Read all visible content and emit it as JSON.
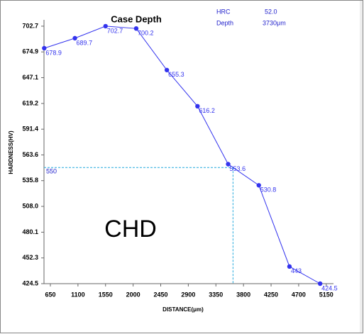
{
  "chart_data": {
    "type": "line",
    "title": "Case Depth",
    "x_label": "DISTANCE(μm)",
    "y_label": "HARDNESS(HV)",
    "info": {
      "hrc_label": "HRC",
      "hrc_value": "52.0",
      "depth_label": "Depth",
      "depth_value": "3730μm"
    },
    "annotation": "CHD",
    "threshold": 550,
    "x": [
      550,
      1050,
      1550,
      2050,
      2550,
      3050,
      3550,
      4050,
      4550,
      5050
    ],
    "series": [
      {
        "color": "#3333ee",
        "values": [
          678.9,
          689.7,
          702.7,
          700.2,
          655.3,
          616.2,
          553.6,
          530.8,
          443,
          424.5
        ]
      }
    ],
    "xlim": [
      546,
      5268
    ],
    "ylim": [
      424.5,
      708
    ],
    "xticks": [
      650,
      1100,
      1550,
      2000,
      2450,
      2900,
      3350,
      3800,
      4250,
      4700,
      5150
    ],
    "yticks": [
      702.7,
      674.9,
      647.1,
      619.2,
      591.4,
      563.6,
      535.8,
      {
        "value": 508,
        "label": "508.0"
      },
      480.1,
      452.3,
      424.5
    ],
    "threshold_color": "#22aadd"
  }
}
